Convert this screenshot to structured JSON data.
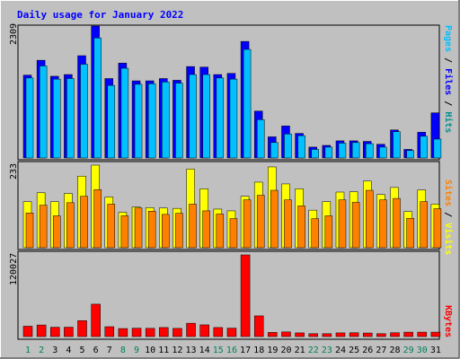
{
  "chart_data": {
    "type": "bar",
    "title": "Daily usage for January 2022",
    "days": [
      "1",
      "2",
      "3",
      "4",
      "5",
      "6",
      "7",
      "8",
      "9",
      "10",
      "11",
      "12",
      "13",
      "14",
      "15",
      "16",
      "17",
      "18",
      "19",
      "20",
      "21",
      "22",
      "23",
      "24",
      "25",
      "26",
      "27",
      "28",
      "29",
      "30",
      "31"
    ],
    "weekend_days": [
      1,
      2,
      8,
      9,
      15,
      16,
      22,
      23,
      29,
      30
    ],
    "panels": [
      {
        "id": "top",
        "max_label": "2309",
        "ylim": [
          0,
          2309
        ],
        "right_label": {
          "parts": [
            "Pages",
            " / ",
            "Files",
            " / ",
            "Hits"
          ]
        },
        "series": [
          {
            "name": "Hits",
            "values": [
              1450,
              1710,
              1430,
              1460,
              1790,
              2309,
              1390,
              1660,
              1350,
              1350,
              1390,
              1360,
              1600,
              1590,
              1460,
              1480,
              2040,
              820,
              370,
              560,
              430,
              190,
              220,
              300,
              300,
              290,
              240,
              490,
              150,
              450,
              790
            ]
          },
          {
            "name": "Files",
            "values": [
              1400,
              1610,
              1380,
              1390,
              1640,
              2100,
              1270,
              1570,
              1290,
              1300,
              1330,
              1310,
              1460,
              1460,
              1400,
              1380,
              1900,
              670,
              270,
              420,
              390,
              150,
              190,
              260,
              270,
              250,
              190,
              460,
              130,
              380,
              330
            ]
          }
        ]
      },
      {
        "id": "middle",
        "max_label": "233",
        "ylim": [
          0,
          233
        ],
        "right_label": {
          "parts": [
            "Sites",
            " / ",
            "Visits"
          ]
        },
        "series": [
          {
            "name": "Visits",
            "values": [
              130,
              155,
              130,
              153,
              202,
              233,
              143,
              100,
              115,
              113,
              112,
              111,
              222,
              166,
              109,
              104,
              145,
              185,
              228,
              180,
              166,
              106,
              130,
              157,
              158,
              188,
              150,
              170,
              102,
              163,
              123
            ]
          },
          {
            "name": "Sites",
            "values": [
              98,
              120,
              90,
              127,
              145,
              164,
              123,
              90,
              112,
              103,
              94,
              97,
              123,
              104,
              95,
              82,
              135,
              148,
              162,
              135,
              118,
              82,
              90,
              135,
              128,
              162,
              135,
              139,
              83,
              130,
              110
            ]
          }
        ]
      },
      {
        "id": "bottom",
        "max_label": "120027",
        "ylim": [
          0,
          120027
        ],
        "right_label": {
          "parts": [
            "KBytes"
          ]
        },
        "series": [
          {
            "name": "KBytes",
            "values": [
              15200,
              17000,
              13700,
              13800,
              23400,
              47600,
              14500,
              11800,
              12300,
              12100,
              13300,
              12000,
              19600,
              17200,
              13300,
              12400,
              120027,
              30400,
              6100,
              6800,
              5400,
              4200,
              4200,
              5400,
              5600,
              5200,
              4200,
              5600,
              6500,
              6500,
              6500
            ]
          }
        ]
      }
    ],
    "colors": {
      "background": "#c0c0c0",
      "border": "#000000",
      "title": "#0000ff",
      "hits": "#009090",
      "files": "#0000ff",
      "pages": "#00c0ff",
      "visits": "#ffff00",
      "sites": "#ff8000",
      "kbytes": "#ff0000",
      "weekday_label": "#000000",
      "weekend_label": "#00805c"
    }
  }
}
